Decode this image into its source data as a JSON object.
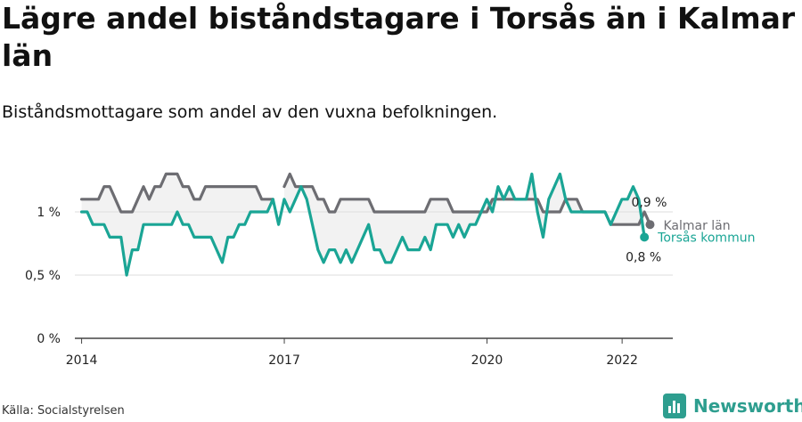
{
  "title": "Lägre andel biståndstagare i Torsås än i Kalmar län",
  "subtitle": "Biståndsmottagare som andel av den vuxna befolkningen.",
  "source": "Källa: Socialstyrelsen",
  "brand": {
    "name": "Newsworthy",
    "icon": "bar-chart-logo-icon"
  },
  "colors": {
    "kalmar": "#6d6d72",
    "torsas": "#1aa595",
    "fill": "#f2f2f2",
    "grid": "#dddddd",
    "axis": "#444444"
  },
  "chart_data": {
    "type": "line",
    "xlabel": "",
    "ylabel": "",
    "ylim": [
      0,
      1.3
    ],
    "grid": true,
    "yticks": [
      {
        "value": 0,
        "label": "0 %"
      },
      {
        "value": 0.5,
        "label": "0,5 %"
      },
      {
        "value": 1,
        "label": "1 %"
      }
    ],
    "xticks": [
      {
        "value": 2014,
        "label": "2014"
      },
      {
        "value": 2017,
        "label": "2017"
      },
      {
        "value": 2020,
        "label": "2020"
      },
      {
        "value": 2022,
        "label": "2022"
      }
    ],
    "xlim": [
      2013.9,
      2022.75
    ],
    "x_start": 2014.0,
    "x_step": 0.0833,
    "series": [
      {
        "name": "Kalmar län",
        "key": "kalmar",
        "end_label": "0,9 %",
        "values": [
          1.1,
          1.1,
          1.1,
          1.1,
          1.2,
          1.2,
          1.1,
          1.0,
          1.0,
          1.0,
          1.1,
          1.2,
          1.1,
          1.2,
          1.2,
          1.3,
          1.3,
          1.3,
          1.2,
          1.2,
          1.1,
          1.1,
          1.2,
          1.2,
          1.2,
          1.2,
          1.2,
          1.2,
          1.2,
          1.2,
          1.2,
          1.2,
          1.1,
          1.1,
          1.1,
          null,
          1.2,
          1.3,
          1.2,
          1.2,
          1.2,
          1.2,
          1.1,
          1.1,
          1.0,
          1.0,
          1.1,
          1.1,
          1.1,
          1.1,
          1.1,
          1.1,
          1.0,
          1.0,
          1.0,
          1.0,
          1.0,
          1.0,
          1.0,
          1.0,
          1.0,
          1.0,
          1.1,
          1.1,
          1.1,
          1.1,
          1.0,
          1.0,
          1.0,
          1.0,
          1.0,
          1.0,
          1.0,
          1.1,
          1.1,
          1.1,
          1.1,
          1.1,
          1.1,
          1.1,
          1.1,
          1.1,
          1.0,
          1.0,
          1.0,
          1.0,
          1.1,
          1.1,
          1.1,
          1.0,
          1.0,
          1.0,
          1.0,
          1.0,
          0.9,
          0.9,
          0.9,
          0.9,
          0.9,
          0.9,
          1.0,
          0.9
        ]
      },
      {
        "name": "Torsås kommun",
        "key": "torsas",
        "end_label": "0,8 %",
        "values": [
          1.0,
          1.0,
          0.9,
          0.9,
          0.9,
          0.8,
          0.8,
          0.8,
          0.5,
          0.7,
          0.7,
          0.9,
          0.9,
          0.9,
          0.9,
          0.9,
          0.9,
          1.0,
          0.9,
          0.9,
          0.8,
          0.8,
          0.8,
          0.8,
          0.7,
          0.6,
          0.8,
          0.8,
          0.9,
          0.9,
          1.0,
          1.0,
          1.0,
          1.0,
          1.1,
          0.9,
          1.1,
          1.0,
          1.1,
          1.2,
          1.1,
          0.9,
          0.7,
          0.6,
          0.7,
          0.7,
          0.6,
          0.7,
          0.6,
          0.7,
          0.8,
          0.9,
          0.7,
          0.7,
          0.6,
          0.6,
          0.7,
          0.8,
          0.7,
          0.7,
          0.7,
          0.8,
          0.7,
          0.9,
          0.9,
          0.9,
          0.8,
          0.9,
          0.8,
          0.9,
          0.9,
          1.0,
          1.1,
          1.0,
          1.2,
          1.1,
          1.2,
          1.1,
          1.1,
          1.1,
          1.3,
          1.0,
          0.8,
          1.1,
          1.2,
          1.3,
          1.1,
          1.0,
          1.0,
          1.0,
          1.0,
          1.0,
          1.0,
          1.0,
          0.9,
          1.0,
          1.1,
          1.1,
          1.2,
          1.1,
          0.8
        ]
      }
    ]
  }
}
